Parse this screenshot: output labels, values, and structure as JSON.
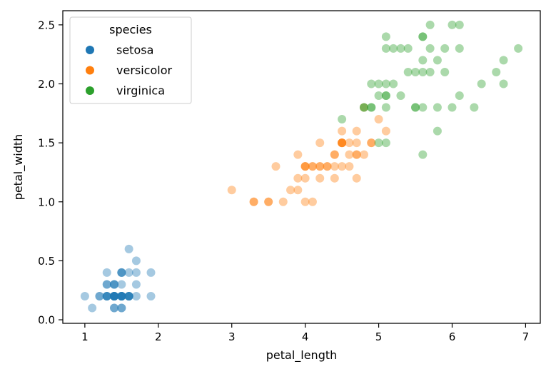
{
  "chart_data": {
    "type": "scatter",
    "xlabel": "petal_length",
    "ylabel": "petal_width",
    "xlim": [
      0.7,
      7.2
    ],
    "ylim": [
      -0.03,
      2.62
    ],
    "xticks": [
      1,
      2,
      3,
      4,
      5,
      6,
      7
    ],
    "xtick_labels": [
      "1",
      "2",
      "3",
      "4",
      "5",
      "6",
      "7"
    ],
    "yticks": [
      0.0,
      0.5,
      1.0,
      1.5,
      2.0,
      2.5
    ],
    "ytick_labels": [
      "0.0",
      "0.5",
      "1.0",
      "1.5",
      "2.0",
      "2.5"
    ],
    "grid": false,
    "point_alpha": 0.4,
    "legend": {
      "title": "species",
      "placement": "top-left",
      "entries": [
        "setosa",
        "versicolor",
        "virginica"
      ]
    },
    "series": [
      {
        "name": "setosa",
        "color": "#1f77b4",
        "points": [
          [
            1.4,
            0.2
          ],
          [
            1.4,
            0.2
          ],
          [
            1.3,
            0.2
          ],
          [
            1.5,
            0.2
          ],
          [
            1.4,
            0.2
          ],
          [
            1.7,
            0.4
          ],
          [
            1.4,
            0.3
          ],
          [
            1.5,
            0.2
          ],
          [
            1.4,
            0.2
          ],
          [
            1.5,
            0.1
          ],
          [
            1.5,
            0.2
          ],
          [
            1.6,
            0.2
          ],
          [
            1.4,
            0.1
          ],
          [
            1.1,
            0.1
          ],
          [
            1.2,
            0.2
          ],
          [
            1.5,
            0.4
          ],
          [
            1.3,
            0.4
          ],
          [
            1.4,
            0.3
          ],
          [
            1.7,
            0.3
          ],
          [
            1.5,
            0.3
          ],
          [
            1.7,
            0.2
          ],
          [
            1.5,
            0.4
          ],
          [
            1.0,
            0.2
          ],
          [
            1.7,
            0.5
          ],
          [
            1.9,
            0.2
          ],
          [
            1.6,
            0.2
          ],
          [
            1.6,
            0.4
          ],
          [
            1.5,
            0.2
          ],
          [
            1.4,
            0.2
          ],
          [
            1.6,
            0.2
          ],
          [
            1.6,
            0.2
          ],
          [
            1.5,
            0.4
          ],
          [
            1.5,
            0.1
          ],
          [
            1.4,
            0.2
          ],
          [
            1.5,
            0.2
          ],
          [
            1.2,
            0.2
          ],
          [
            1.3,
            0.2
          ],
          [
            1.4,
            0.1
          ],
          [
            1.3,
            0.2
          ],
          [
            1.5,
            0.2
          ],
          [
            1.3,
            0.3
          ],
          [
            1.3,
            0.3
          ],
          [
            1.3,
            0.2
          ],
          [
            1.6,
            0.6
          ],
          [
            1.9,
            0.4
          ],
          [
            1.4,
            0.3
          ],
          [
            1.6,
            0.2
          ],
          [
            1.4,
            0.2
          ],
          [
            1.5,
            0.2
          ],
          [
            1.4,
            0.2
          ]
        ]
      },
      {
        "name": "versicolor",
        "color": "#ff7f0e",
        "points": [
          [
            4.7,
            1.4
          ],
          [
            4.5,
            1.5
          ],
          [
            4.9,
            1.5
          ],
          [
            4.0,
            1.3
          ],
          [
            4.6,
            1.5
          ],
          [
            4.5,
            1.3
          ],
          [
            4.7,
            1.6
          ],
          [
            3.3,
            1.0
          ],
          [
            4.6,
            1.3
          ],
          [
            3.9,
            1.4
          ],
          [
            3.5,
            1.0
          ],
          [
            4.2,
            1.5
          ],
          [
            4.0,
            1.0
          ],
          [
            4.7,
            1.4
          ],
          [
            3.6,
            1.3
          ],
          [
            4.4,
            1.4
          ],
          [
            4.5,
            1.5
          ],
          [
            4.1,
            1.0
          ],
          [
            4.5,
            1.5
          ],
          [
            3.9,
            1.1
          ],
          [
            4.8,
            1.8
          ],
          [
            4.0,
            1.3
          ],
          [
            4.9,
            1.5
          ],
          [
            4.7,
            1.2
          ],
          [
            4.3,
            1.3
          ],
          [
            4.4,
            1.4
          ],
          [
            4.8,
            1.4
          ],
          [
            5.0,
            1.7
          ],
          [
            4.5,
            1.5
          ],
          [
            3.5,
            1.0
          ],
          [
            3.8,
            1.1
          ],
          [
            3.7,
            1.0
          ],
          [
            3.9,
            1.2
          ],
          [
            5.1,
            1.6
          ],
          [
            4.5,
            1.5
          ],
          [
            4.5,
            1.6
          ],
          [
            4.7,
            1.5
          ],
          [
            4.4,
            1.3
          ],
          [
            4.1,
            1.3
          ],
          [
            4.0,
            1.3
          ],
          [
            4.4,
            1.2
          ],
          [
            4.6,
            1.4
          ],
          [
            4.0,
            1.2
          ],
          [
            3.3,
            1.0
          ],
          [
            4.2,
            1.3
          ],
          [
            4.2,
            1.2
          ],
          [
            4.2,
            1.3
          ],
          [
            4.3,
            1.3
          ],
          [
            3.0,
            1.1
          ],
          [
            4.1,
            1.3
          ]
        ]
      },
      {
        "name": "virginica",
        "color": "#2ca02c",
        "points": [
          [
            6.0,
            2.5
          ],
          [
            5.1,
            1.9
          ],
          [
            5.9,
            2.1
          ],
          [
            5.6,
            1.8
          ],
          [
            5.8,
            2.2
          ],
          [
            6.6,
            2.1
          ],
          [
            4.5,
            1.7
          ],
          [
            6.3,
            1.8
          ],
          [
            5.8,
            1.8
          ],
          [
            6.1,
            2.5
          ],
          [
            5.1,
            2.0
          ],
          [
            5.3,
            1.9
          ],
          [
            5.5,
            2.1
          ],
          [
            5.0,
            2.0
          ],
          [
            5.1,
            2.4
          ],
          [
            5.3,
            2.3
          ],
          [
            5.5,
            1.8
          ],
          [
            6.7,
            2.2
          ],
          [
            6.9,
            2.3
          ],
          [
            5.0,
            1.5
          ],
          [
            5.7,
            2.3
          ],
          [
            4.9,
            2.0
          ],
          [
            6.7,
            2.0
          ],
          [
            4.9,
            1.8
          ],
          [
            5.7,
            2.1
          ],
          [
            6.0,
            1.8
          ],
          [
            4.8,
            1.8
          ],
          [
            4.9,
            1.8
          ],
          [
            5.6,
            2.1
          ],
          [
            5.8,
            1.6
          ],
          [
            6.1,
            1.9
          ],
          [
            6.4,
            2.0
          ],
          [
            5.6,
            2.2
          ],
          [
            5.1,
            1.5
          ],
          [
            5.6,
            1.4
          ],
          [
            6.1,
            2.3
          ],
          [
            5.6,
            2.4
          ],
          [
            5.5,
            1.8
          ],
          [
            4.8,
            1.8
          ],
          [
            5.4,
            2.1
          ],
          [
            5.6,
            2.4
          ],
          [
            5.1,
            2.3
          ],
          [
            5.1,
            1.9
          ],
          [
            5.9,
            2.3
          ],
          [
            5.7,
            2.5
          ],
          [
            5.2,
            2.3
          ],
          [
            5.0,
            1.9
          ],
          [
            5.2,
            2.0
          ],
          [
            5.4,
            2.3
          ],
          [
            5.1,
            1.8
          ]
        ]
      }
    ]
  }
}
